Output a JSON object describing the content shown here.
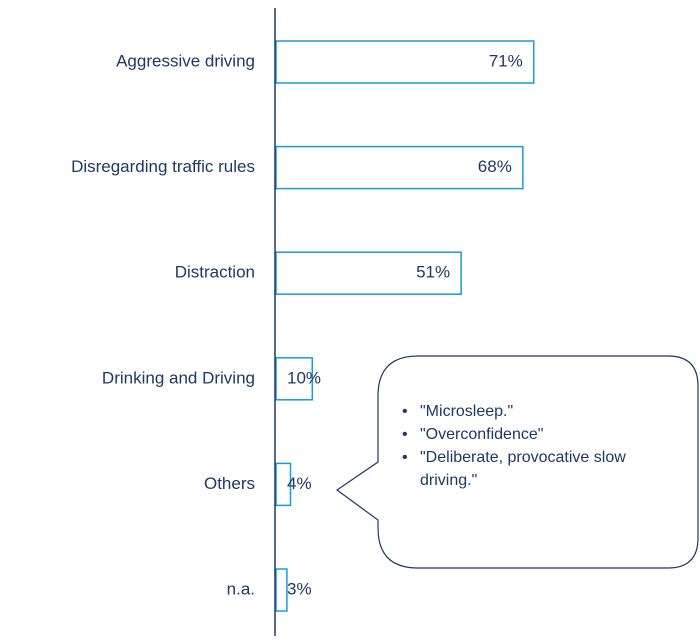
{
  "chart_data": {
    "type": "bar",
    "categories": [
      "Aggressive driving",
      "Disregarding traffic rules",
      "Distraction",
      "Drinking and Driving",
      "Others",
      "n.a."
    ],
    "values": [
      71,
      68,
      51,
      10,
      4,
      3
    ],
    "value_labels": [
      "71%",
      "68%",
      "51%",
      "10%",
      "4%",
      "3%"
    ],
    "color": "#1b9ad6",
    "callout": [
      "\"Microsleep.\"",
      "\"Overconfidence\"",
      "\"Deliberate, provocative slow driving.\""
    ]
  }
}
